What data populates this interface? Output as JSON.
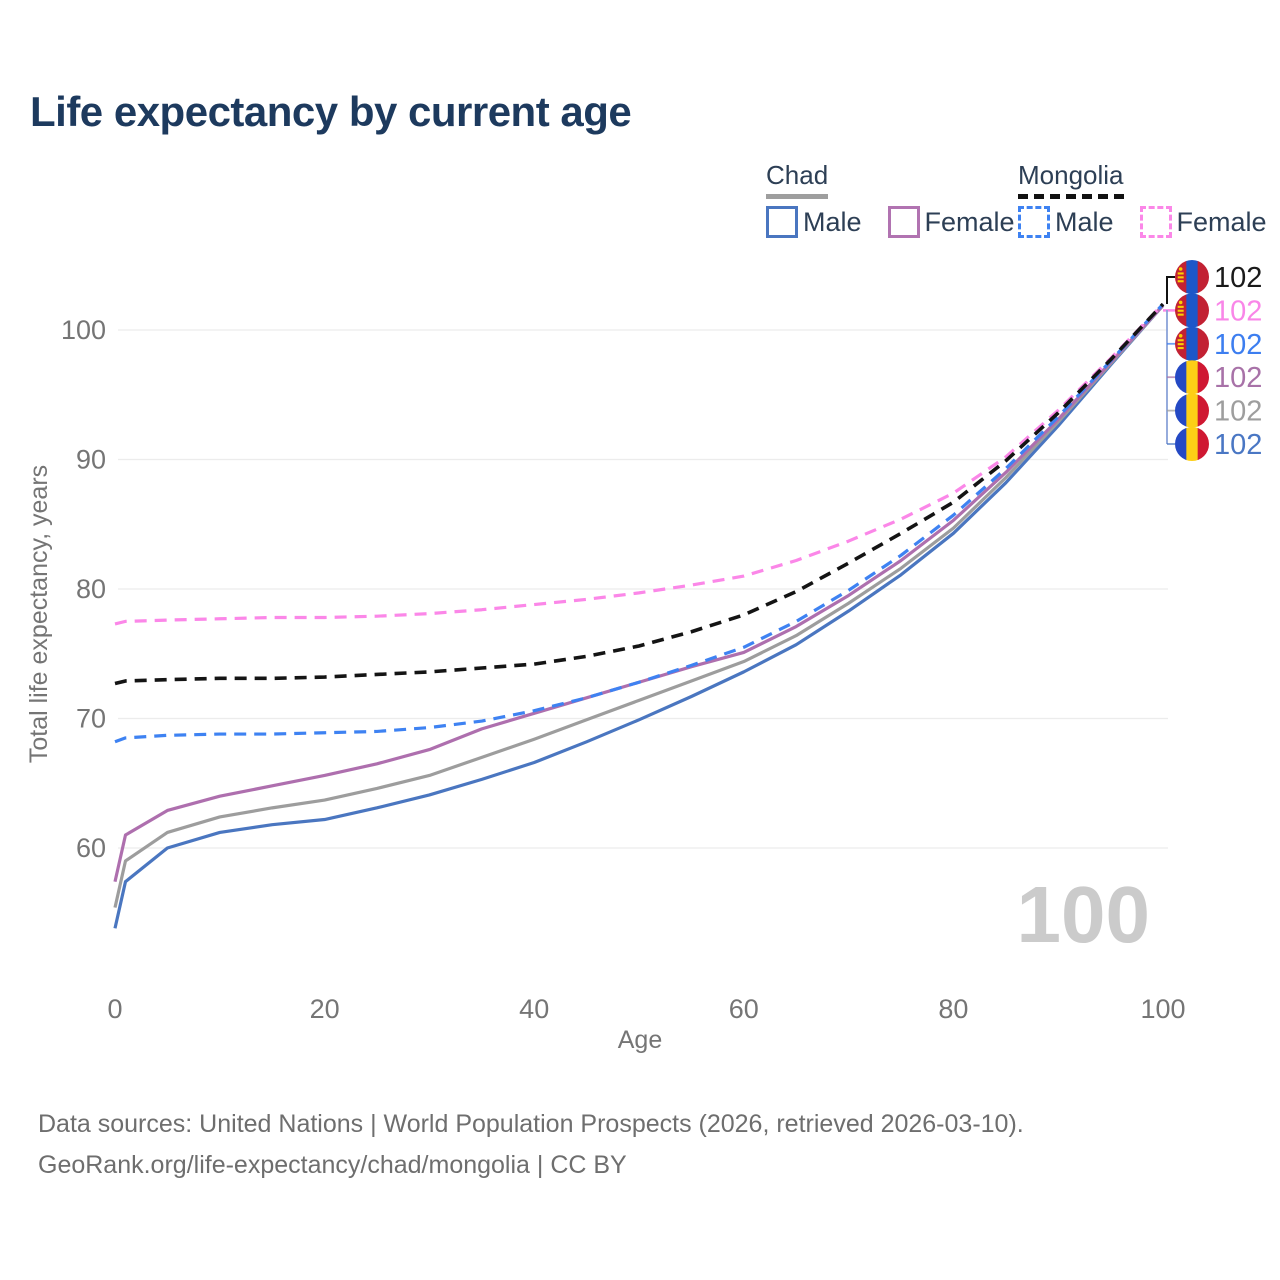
{
  "page": {
    "title": "Life expectancy by current age"
  },
  "legend": {
    "groups": [
      {
        "country": "Chad",
        "line_style": "solid",
        "underline_color": "#9e9e9e",
        "items": [
          {
            "label": "Male",
            "color": "#4a76c0"
          },
          {
            "label": "Female",
            "color": "#b173b1"
          }
        ]
      },
      {
        "country": "Mongolia",
        "line_style": "dashed",
        "underline_color": "#111111",
        "items": [
          {
            "label": "Male",
            "color": "#3e82f2"
          },
          {
            "label": "Female",
            "color": "#fb87e8"
          }
        ]
      }
    ]
  },
  "watermark": "100",
  "footer": {
    "line1": "Data sources: United Nations | World Population Prospects (2026, retrieved 2026-03-10).",
    "line2": "GeoRank.org/life-expectancy/chad/mongolia | CC BY"
  },
  "colors": {
    "title": "#1d3a5e",
    "axis_text": "#757575",
    "gridline": "#ececec",
    "watermark": "#cbcbcb",
    "leader_bracket": "#8aa2d8",
    "leader_black": "#111111",
    "leader_pink": "#fb87e8"
  },
  "flags": {
    "mongolia": {
      "bands": [
        "#c22133",
        "#1d57c9",
        "#c22133"
      ],
      "emblem": "#f9cf02"
    },
    "chad": {
      "bands": [
        "#2449c4",
        "#fdcf16",
        "#cf1832"
      ]
    }
  },
  "chart_data": {
    "type": "line",
    "title": "Life expectancy by current age",
    "xlabel": "Age",
    "ylabel": "Total life expectancy, years",
    "x_ticks": [
      0,
      20,
      40,
      60,
      80,
      100
    ],
    "y_ticks": [
      60,
      70,
      80,
      90,
      100
    ],
    "xlim": [
      0,
      100
    ],
    "ylim": [
      53,
      103
    ],
    "grid": "horizontal",
    "legend_position": "top-right",
    "current_age_indicator": "100",
    "x": [
      0,
      1,
      5,
      10,
      15,
      20,
      25,
      30,
      35,
      40,
      45,
      50,
      55,
      60,
      65,
      70,
      75,
      80,
      85,
      90,
      95,
      100
    ],
    "series": [
      {
        "name": "Mongolia",
        "country": "Mongolia",
        "sex": "Both sexes",
        "style": "dashed",
        "color": "#141414",
        "width": 3.6,
        "flag": "mongolia",
        "values": [
          72.7,
          72.9,
          73.0,
          73.1,
          73.1,
          73.2,
          73.4,
          73.6,
          73.9,
          74.2,
          74.8,
          75.6,
          76.7,
          78.0,
          79.8,
          82.0,
          84.3,
          86.7,
          89.9,
          93.6,
          97.7,
          102.0
        ],
        "end_label": {
          "value": "102",
          "color": "#1a1a1a"
        }
      },
      {
        "name": "Mongolia Female",
        "country": "Mongolia",
        "sex": "Female",
        "style": "dashed",
        "color": "#fb87e8",
        "width": 3.2,
        "flag": "mongolia",
        "values": [
          77.3,
          77.5,
          77.6,
          77.7,
          77.8,
          77.8,
          77.9,
          78.1,
          78.4,
          78.8,
          79.2,
          79.7,
          80.3,
          81.0,
          82.2,
          83.7,
          85.4,
          87.4,
          90.2,
          93.8,
          97.8,
          102.0
        ],
        "end_label": {
          "value": "102",
          "color": "#f986e8"
        }
      },
      {
        "name": "Mongolia Male",
        "country": "Mongolia",
        "sex": "Male",
        "style": "dashed",
        "color": "#3e82f2",
        "width": 3.2,
        "flag": "mongolia",
        "values": [
          68.2,
          68.5,
          68.7,
          68.8,
          68.8,
          68.9,
          69.0,
          69.3,
          69.8,
          70.6,
          71.6,
          72.8,
          74.1,
          75.5,
          77.5,
          79.9,
          82.6,
          85.7,
          89.3,
          93.3,
          97.6,
          102.0
        ],
        "end_label": {
          "value": "102",
          "color": "#3d7ef0"
        }
      },
      {
        "name": "Chad Female",
        "country": "Chad",
        "sex": "Female",
        "style": "solid",
        "color": "#ae6fae",
        "width": 3.2,
        "flag": "chad",
        "values": [
          57.4,
          61.0,
          62.9,
          64.0,
          64.8,
          65.6,
          66.5,
          67.6,
          69.2,
          70.4,
          71.6,
          72.8,
          74.0,
          75.1,
          77.1,
          79.5,
          82.2,
          85.3,
          89.0,
          93.1,
          97.5,
          101.9
        ],
        "end_label": {
          "value": "102",
          "color": "#a872a8"
        }
      },
      {
        "name": "Chad",
        "country": "Chad",
        "sex": "Both sexes",
        "style": "solid",
        "color": "#9d9d9d",
        "width": 3.2,
        "flag": "chad",
        "values": [
          55.4,
          59.0,
          61.2,
          62.4,
          63.1,
          63.7,
          64.6,
          65.6,
          67.0,
          68.4,
          69.9,
          71.4,
          72.9,
          74.4,
          76.4,
          78.9,
          81.6,
          84.7,
          88.6,
          92.9,
          97.4,
          101.9
        ],
        "end_label": {
          "value": "102",
          "color": "#9e9e9e"
        }
      },
      {
        "name": "Chad Male",
        "country": "Chad",
        "sex": "Male",
        "style": "solid",
        "color": "#4a76c0",
        "width": 3.2,
        "flag": "chad",
        "values": [
          53.8,
          57.4,
          60.0,
          61.2,
          61.8,
          62.2,
          63.1,
          64.1,
          65.3,
          66.6,
          68.2,
          69.9,
          71.7,
          73.6,
          75.7,
          78.3,
          81.1,
          84.3,
          88.2,
          92.6,
          97.3,
          101.9
        ],
        "end_label": {
          "value": "102",
          "color": "#4a77c4"
        }
      }
    ]
  }
}
